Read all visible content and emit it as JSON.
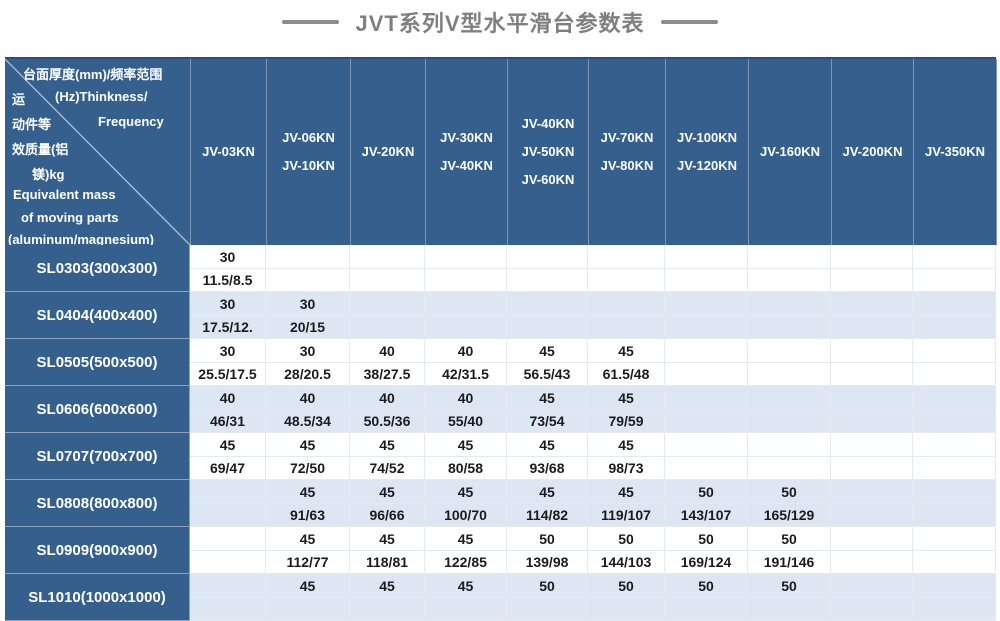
{
  "title": {
    "text": "JVT系列V型水平滑台参数表"
  },
  "colors": {
    "header_blue": "#35608E",
    "row_alt_blue": "#DCE7F3",
    "title_gray": "#7F7F7F"
  },
  "table": {
    "corner": {
      "lines": [
        "台面厚度(mm)/频率范围",
        "运",
        "(Hz)Thinkness/",
        "动件等",
        "Frequency",
        "效质量(铝",
        "镁)kg",
        "Equivalent mass",
        "of moving parts",
        "(aluminum/magnesium)"
      ]
    },
    "columns": [
      {
        "lines": [
          "JV-03KN"
        ]
      },
      {
        "lines": [
          "JV-06KN",
          "JV-10KN"
        ]
      },
      {
        "lines": [
          "JV-20KN"
        ]
      },
      {
        "lines": [
          "JV-30KN",
          "JV-40KN"
        ]
      },
      {
        "lines": [
          "JV-40KN",
          "JV-50KN",
          "JV-60KN"
        ]
      },
      {
        "lines": [
          "JV-70KN",
          "JV-80KN"
        ]
      },
      {
        "lines": [
          "JV-100KN",
          "JV-120KN"
        ]
      },
      {
        "lines": [
          "JV-160KN"
        ]
      },
      {
        "lines": [
          "JV-200KN"
        ]
      },
      {
        "lines": [
          "JV-350KN"
        ]
      }
    ],
    "rows": [
      {
        "label": "SL0303(300x300)",
        "cells": [
          [
            "30",
            "11.5/8.5"
          ],
          [
            "",
            ""
          ],
          [
            "",
            ""
          ],
          [
            "",
            ""
          ],
          [
            "",
            ""
          ],
          [
            "",
            ""
          ],
          [
            "",
            ""
          ],
          [
            "",
            ""
          ],
          [
            "",
            ""
          ],
          [
            "",
            ""
          ]
        ]
      },
      {
        "label": "SL0404(400x400)",
        "cells": [
          [
            "30",
            "17.5/12."
          ],
          [
            "30",
            "20/15"
          ],
          [
            "",
            ""
          ],
          [
            "",
            ""
          ],
          [
            "",
            ""
          ],
          [
            "",
            ""
          ],
          [
            "",
            ""
          ],
          [
            "",
            ""
          ],
          [
            "",
            ""
          ],
          [
            "",
            ""
          ]
        ]
      },
      {
        "label": "SL0505(500x500)",
        "cells": [
          [
            "30",
            "25.5/17.5"
          ],
          [
            "30",
            "28/20.5"
          ],
          [
            "40",
            "38/27.5"
          ],
          [
            "40",
            "42/31.5"
          ],
          [
            "45",
            "56.5/43"
          ],
          [
            "45",
            "61.5/48"
          ],
          [
            "",
            ""
          ],
          [
            "",
            ""
          ],
          [
            "",
            ""
          ],
          [
            "",
            ""
          ]
        ]
      },
      {
        "label": "SL0606(600x600)",
        "cells": [
          [
            "40",
            "46/31"
          ],
          [
            "40",
            "48.5/34"
          ],
          [
            "40",
            "50.5/36"
          ],
          [
            "40",
            "55/40"
          ],
          [
            "45",
            "73/54"
          ],
          [
            "45",
            "79/59"
          ],
          [
            "",
            ""
          ],
          [
            "",
            ""
          ],
          [
            "",
            ""
          ],
          [
            "",
            ""
          ]
        ]
      },
      {
        "label": "SL0707(700x700)",
        "cells": [
          [
            "45",
            "69/47"
          ],
          [
            "45",
            "72/50"
          ],
          [
            "45",
            "74/52"
          ],
          [
            "45",
            "80/58"
          ],
          [
            "45",
            "93/68"
          ],
          [
            "45",
            "98/73"
          ],
          [
            "",
            ""
          ],
          [
            "",
            ""
          ],
          [
            "",
            ""
          ],
          [
            "",
            ""
          ]
        ]
      },
      {
        "label": "SL0808(800x800)",
        "cells": [
          [
            "",
            ""
          ],
          [
            "45",
            "91/63"
          ],
          [
            "45",
            "96/66"
          ],
          [
            "45",
            "100/70"
          ],
          [
            "45",
            "114/82"
          ],
          [
            "45",
            "119/107"
          ],
          [
            "50",
            "143/107"
          ],
          [
            "50",
            "165/129"
          ],
          [
            "",
            ""
          ],
          [
            "",
            ""
          ]
        ]
      },
      {
        "label": "SL0909(900x900)",
        "cells": [
          [
            "",
            ""
          ],
          [
            "45",
            "112/77"
          ],
          [
            "45",
            "118/81"
          ],
          [
            "45",
            "122/85"
          ],
          [
            "50",
            "139/98"
          ],
          [
            "50",
            "144/103"
          ],
          [
            "50",
            "169/124"
          ],
          [
            "50",
            "191/146"
          ],
          [
            "",
            ""
          ],
          [
            "",
            ""
          ]
        ]
      },
      {
        "label": "SL1010(1000x1000)",
        "cells": [
          [
            "",
            ""
          ],
          [
            "45",
            ""
          ],
          [
            "45",
            ""
          ],
          [
            "45",
            ""
          ],
          [
            "50",
            ""
          ],
          [
            "50",
            ""
          ],
          [
            "50",
            ""
          ],
          [
            "50",
            ""
          ],
          [
            "",
            ""
          ],
          [
            "",
            ""
          ]
        ]
      }
    ]
  }
}
